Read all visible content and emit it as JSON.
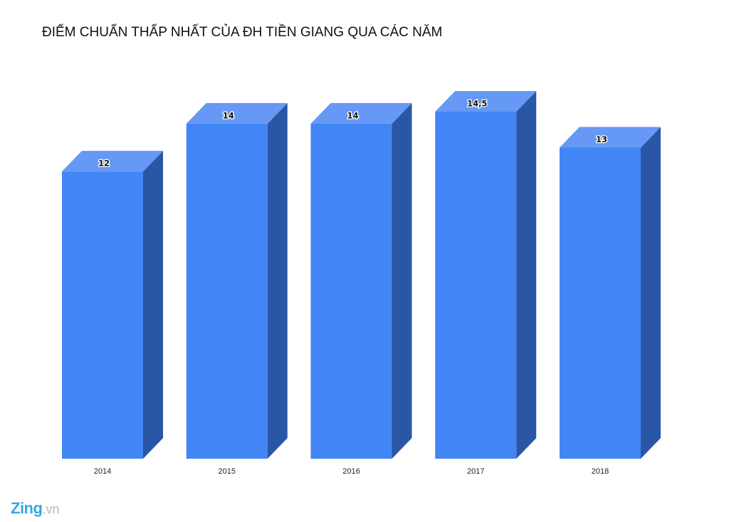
{
  "chart_data": {
    "type": "bar",
    "title": "ĐIỂM CHUẨN THẤP NHẤT CỦA ĐH TIỀN GIANG QUA CÁC NĂM",
    "categories": [
      "2014",
      "2015",
      "2016",
      "2017",
      "2018"
    ],
    "values": [
      12,
      14,
      14,
      14.5,
      13
    ],
    "data_labels": [
      "12",
      "14",
      "14",
      "14,5",
      "13"
    ],
    "xlabel": "",
    "ylabel": "",
    "ylim": [
      0,
      14.5
    ],
    "grid": false,
    "legend": "none",
    "style": "3d-column",
    "colors": {
      "front": "#4285f4",
      "top": "#6699f5",
      "side": "#2a56a6"
    }
  },
  "brand": {
    "name": "Zing",
    "suffix": ".vn",
    "color": "#35a7e0",
    "suffix_color": "#b8b8b8"
  }
}
